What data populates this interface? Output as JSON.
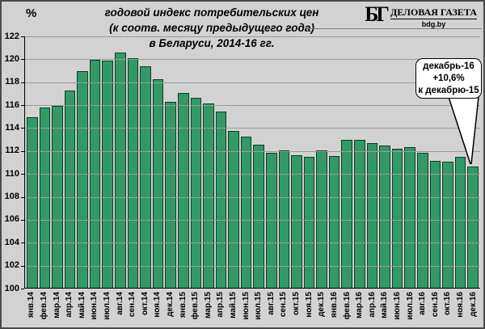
{
  "header": {
    "percent_label": "%",
    "title_line1": "годовой индекс потребительских цен",
    "title_line2": "(к соотв. месяцу предыдущего года)",
    "title_line3": "в Беларуси, 2014-16 гг.",
    "logo": {
      "monogram": "БГ",
      "name": "ДЕЛОВАЯ ГАЗЕТА",
      "site": "bdg.by"
    }
  },
  "callout": {
    "line1": "декабрь-16",
    "line2": "+10,6%",
    "line3": "к декабрю-15"
  },
  "colors": {
    "background": "#d2d2d2",
    "bar_fill": "#339966",
    "bar_border": "#0f3d26",
    "gridline": "#9b9b9b",
    "axis": "#000000",
    "callout_bg": "#ffffff"
  },
  "chart_data": {
    "type": "bar",
    "title": "годовой индекс потребительских цен (к соотв. месяцу предыдущего года) в Беларуси, 2014-16 гг.",
    "ylabel": "%",
    "xlabel": "",
    "ylim": [
      100,
      122
    ],
    "ytick_step": 2,
    "yticks": [
      122,
      120,
      118,
      116,
      114,
      112,
      110,
      108,
      106,
      104,
      102,
      100
    ],
    "grid": true,
    "legend": null,
    "categories": [
      "янв.14",
      "фев.14",
      "мар.14",
      "апр.14",
      "май.14",
      "июн.14",
      "июл.14",
      "авг.14",
      "сен.14",
      "окт.14",
      "ноя.14",
      "дек.14",
      "янв.15",
      "фев.15",
      "мар.15",
      "апр.15",
      "май.15",
      "июн.15",
      "июл.15",
      "авг.15",
      "сен.15",
      "окт.15",
      "ноя.15",
      "дек.15",
      "янв.16",
      "фев.16",
      "мар.16",
      "апр.16",
      "май.16",
      "июн.16",
      "июл.16",
      "авг.16",
      "сен.16",
      "окт.16",
      "ноя.16",
      "дек.16"
    ],
    "values": [
      114.9,
      115.7,
      115.9,
      117.2,
      118.9,
      119.9,
      119.8,
      120.5,
      120.0,
      119.3,
      118.2,
      116.2,
      117.0,
      116.6,
      116.1,
      115.4,
      113.7,
      113.2,
      112.5,
      111.8,
      112.0,
      111.6,
      111.4,
      112.0,
      111.5,
      112.9,
      112.9,
      112.6,
      112.4,
      112.1,
      112.3,
      111.8,
      111.1,
      111.0,
      111.4,
      110.6
    ],
    "annotation_target": "дек.16",
    "annotation_value": 110.6
  }
}
